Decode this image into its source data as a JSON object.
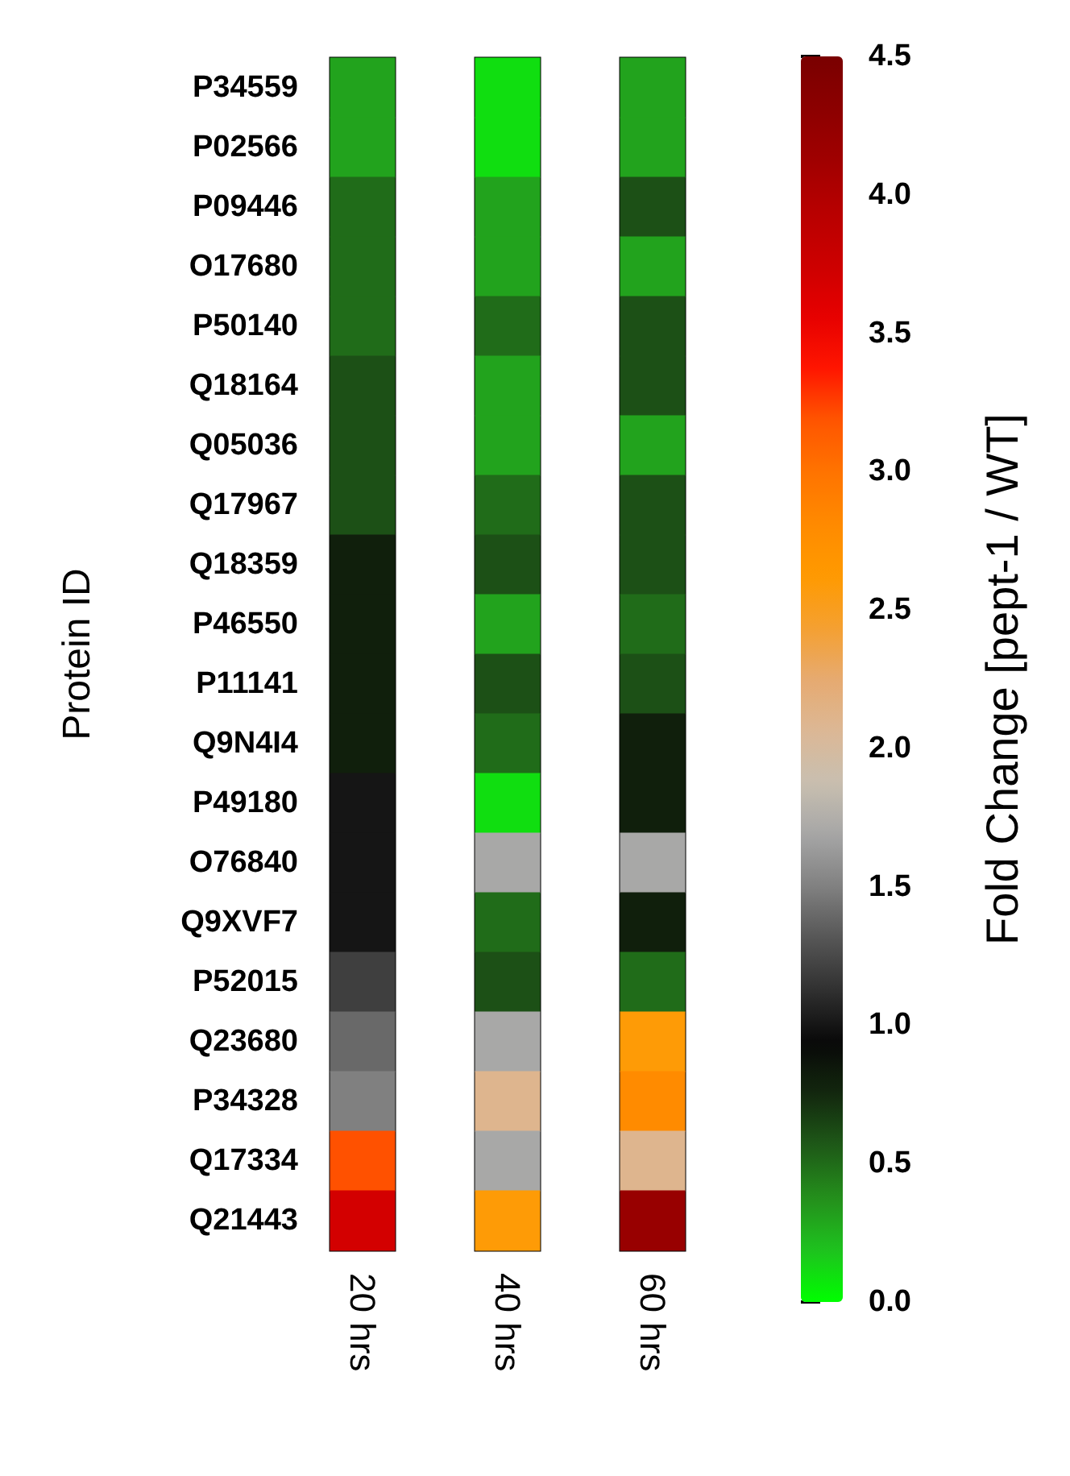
{
  "chart_data": {
    "type": "heatmap",
    "ylabel": "Protein ID",
    "clabel": "Fold Change [pept-1 / WT]",
    "categories": [
      "20 hrs",
      "40 hrs",
      "60 hrs"
    ],
    "y_categories": [
      "P34559",
      "P02566",
      "P09446",
      "O17680",
      "P50140",
      "Q18164",
      "Q05036",
      "Q17967",
      "Q18359",
      "P46550",
      "P11141",
      "Q9N4I4",
      "P49180",
      "O76840",
      "Q9XVF7",
      "P52015",
      "Q23680",
      "P34328",
      "Q17334",
      "Q21443"
    ],
    "cells": [
      [
        0.3,
        0.1,
        0.3
      ],
      [
        0.3,
        0.1,
        0.3
      ],
      [
        0.5,
        0.3,
        0.6
      ],
      [
        0.5,
        0.3,
        0.3
      ],
      [
        0.5,
        0.5,
        0.6
      ],
      [
        0.6,
        0.3,
        0.6
      ],
      [
        0.6,
        0.3,
        0.3
      ],
      [
        0.6,
        0.5,
        0.6
      ],
      [
        0.8,
        0.6,
        0.6
      ],
      [
        0.8,
        0.3,
        0.5
      ],
      [
        0.8,
        0.6,
        0.6
      ],
      [
        0.8,
        0.5,
        0.8
      ],
      [
        1.0,
        0.1,
        0.8
      ],
      [
        1.0,
        1.7,
        1.7
      ],
      [
        1.0,
        0.5,
        0.8
      ],
      [
        1.2,
        0.6,
        0.5
      ],
      [
        1.4,
        1.7,
        2.6
      ],
      [
        1.5,
        2.1,
        2.8
      ],
      [
        3.2,
        1.7,
        2.1
      ],
      [
        3.7,
        2.6,
        4.2
      ]
    ],
    "clim": [
      0,
      4.5
    ],
    "cticks": [
      {
        "value": 0,
        "label": "0.0"
      },
      {
        "value": 0.5,
        "label": "0.5"
      },
      {
        "value": 1,
        "label": "1.0"
      },
      {
        "value": 1.5,
        "label": "1.5"
      },
      {
        "value": 2,
        "label": "2.0"
      },
      {
        "value": 2.5,
        "label": "2.5"
      },
      {
        "value": 3,
        "label": "3.0"
      },
      {
        "value": 3.5,
        "label": "3.5"
      },
      {
        "value": 4,
        "label": "4.0"
      },
      {
        "value": 4.5,
        "label": "4.5"
      }
    ]
  }
}
